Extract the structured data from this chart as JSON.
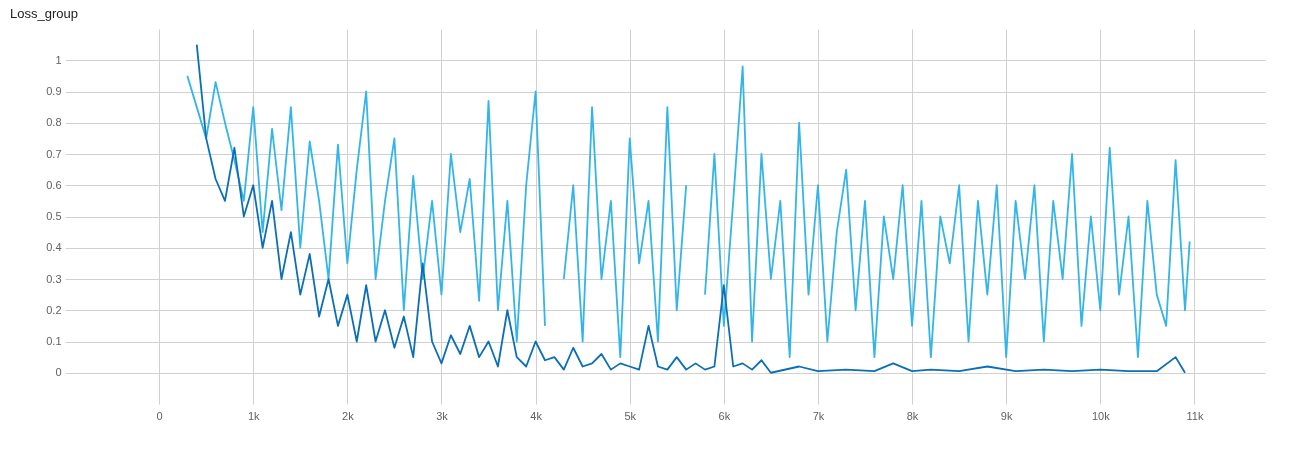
{
  "chart_data": {
    "type": "line",
    "title": "Loss_group",
    "grid": true,
    "legend": false,
    "xlim": [
      -1000,
      11750
    ],
    "xticks": [
      0,
      {
        "value": 1000,
        "label": "1k"
      },
      {
        "value": 2000,
        "label": "2k"
      },
      {
        "value": 3000,
        "label": "3k"
      },
      {
        "value": 4000,
        "label": "4k"
      },
      {
        "value": 5000,
        "label": "5k"
      },
      {
        "value": 6000,
        "label": "6k"
      },
      {
        "value": 7000,
        "label": "7k"
      },
      {
        "value": 8000,
        "label": "8k"
      },
      {
        "value": 9000,
        "label": "9k"
      },
      {
        "value": 10000,
        "label": "10k"
      },
      {
        "value": 11000,
        "label": "11k"
      }
    ],
    "ylim": [
      -0.1,
      1.1
    ],
    "yticks": [
      0,
      0.1,
      0.2,
      0.3,
      0.4,
      0.5,
      0.6,
      0.7,
      0.8,
      0.9,
      1
    ],
    "series": [
      {
        "color": "#33b5ea",
        "x": [
          300,
          500,
          600,
          700,
          800,
          900,
          1000,
          1100,
          1200,
          1300,
          1400,
          1500,
          1600,
          1700,
          1800,
          1900,
          2000,
          2100,
          2200,
          2300,
          2400,
          2500,
          2600,
          2700,
          2800,
          2900,
          3000,
          3100,
          3200,
          3300,
          3400,
          3500,
          3600,
          3700,
          3800,
          3900,
          4000,
          4100,
          4200,
          4300,
          4400,
          4500,
          4600,
          4700,
          4800,
          4900,
          5000,
          5100,
          5200,
          5300,
          5400,
          5500,
          5600,
          5700,
          5800,
          5900,
          6000,
          6100,
          6200,
          6300,
          6400,
          6500,
          6600,
          6700,
          6800,
          6900,
          7000,
          7100,
          7200,
          7300,
          7400,
          7500,
          7600,
          7700,
          7800,
          7900,
          8000,
          8100,
          8200,
          8300,
          8400,
          8500,
          8600,
          8700,
          8800,
          8900,
          9000,
          9100,
          9200,
          9300,
          9400,
          9500,
          9600,
          9700,
          9800,
          9900,
          10000,
          10100,
          10200,
          10300,
          10400,
          10500,
          10600,
          10700,
          10800,
          10900,
          10950
        ],
        "values": [
          0.95,
          0.75,
          0.93,
          0.8,
          0.68,
          0.55,
          0.85,
          0.45,
          0.78,
          0.52,
          0.85,
          0.4,
          0.74,
          0.55,
          0.3,
          0.73,
          0.35,
          0.65,
          0.9,
          0.3,
          0.55,
          0.75,
          0.2,
          0.63,
          0.3,
          0.55,
          0.25,
          0.7,
          0.45,
          0.62,
          0.23,
          0.87,
          0.2,
          0.55,
          0.1,
          0.6,
          0.9,
          0.15,
          null,
          0.3,
          0.6,
          0.1,
          0.85,
          0.3,
          0.55,
          0.05,
          0.75,
          0.35,
          0.55,
          0.1,
          0.85,
          0.2,
          0.6,
          null,
          0.25,
          0.7,
          0.15,
          0.55,
          0.98,
          0.1,
          0.7,
          0.3,
          0.55,
          0.05,
          0.8,
          0.25,
          0.6,
          0.1,
          0.45,
          0.65,
          0.2,
          0.55,
          0.05,
          0.5,
          0.3,
          0.6,
          0.15,
          0.55,
          0.05,
          0.5,
          0.35,
          0.6,
          0.1,
          0.55,
          0.25,
          0.6,
          0.05,
          0.55,
          0.3,
          0.6,
          0.1,
          0.55,
          0.3,
          0.7,
          0.15,
          0.5,
          0.2,
          0.72,
          0.25,
          0.5,
          0.05,
          0.55,
          0.25,
          0.15,
          0.68,
          0.2,
          0.42
        ]
      },
      {
        "color": "#0b6fb8",
        "x": [
          400,
          500,
          600,
          700,
          800,
          900,
          1000,
          1100,
          1200,
          1300,
          1400,
          1500,
          1600,
          1700,
          1800,
          1900,
          2000,
          2100,
          2200,
          2300,
          2400,
          2500,
          2600,
          2700,
          2800,
          2900,
          3000,
          3100,
          3200,
          3300,
          3400,
          3500,
          3600,
          3700,
          3800,
          3900,
          4000,
          4100,
          4200,
          4300,
          4400,
          4500,
          4600,
          4700,
          4800,
          4900,
          5000,
          5100,
          5200,
          5300,
          5400,
          5500,
          5600,
          5700,
          5800,
          5900,
          6000,
          6100,
          6200,
          6300,
          6400,
          6500,
          6800,
          7000,
          7300,
          7600,
          7800,
          8000,
          8200,
          8500,
          8800,
          9100,
          9400,
          9700,
          10000,
          10300,
          10600,
          10800,
          10900
        ],
        "values": [
          1.05,
          0.75,
          0.62,
          0.55,
          0.72,
          0.5,
          0.6,
          0.4,
          0.55,
          0.3,
          0.45,
          0.25,
          0.38,
          0.18,
          0.3,
          0.15,
          0.25,
          0.1,
          0.28,
          0.1,
          0.2,
          0.08,
          0.18,
          0.05,
          0.35,
          0.1,
          0.03,
          0.12,
          0.06,
          0.15,
          0.05,
          0.1,
          0.02,
          0.2,
          0.05,
          0.02,
          0.1,
          0.04,
          0.05,
          0.01,
          0.08,
          0.02,
          0.03,
          0.06,
          0.01,
          0.03,
          0.02,
          0.01,
          0.15,
          0.02,
          0.01,
          0.05,
          0.01,
          0.03,
          0.01,
          0.02,
          0.28,
          0.02,
          0.03,
          0.01,
          0.04,
          0,
          0.02,
          0.005,
          0.01,
          0.005,
          0.03,
          0.005,
          0.01,
          0.005,
          0.02,
          0.005,
          0.01,
          0.005,
          0.01,
          0.005,
          0.005,
          0.05,
          0
        ]
      }
    ]
  }
}
